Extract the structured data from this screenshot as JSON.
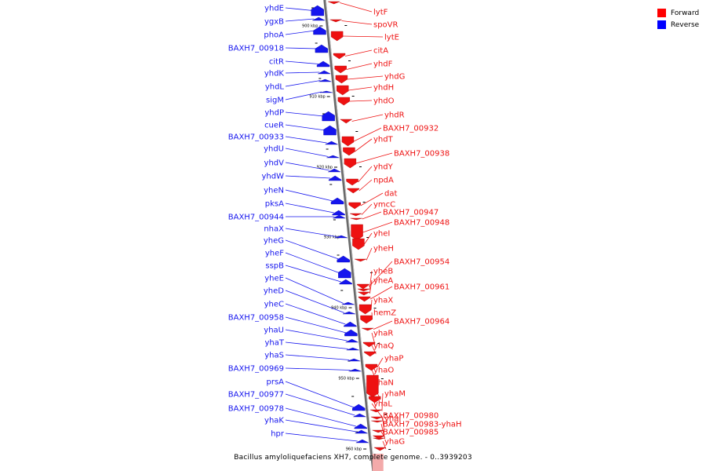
{
  "legend": {
    "forward_label": "Forward",
    "reverse_label": "Reverse",
    "forward_color": "#ff0000",
    "reverse_color": "#0000ff"
  },
  "caption": "Bacillus amyloliquefaciens XH7, complete genome. - 0..3939203",
  "colors": {
    "forward": "#ee1111",
    "reverse": "#1515ee",
    "axis": "#888888",
    "leader_forward": "#ee1111",
    "leader_reverse": "#1515ee"
  },
  "ticks": [
    {
      "label": "900 kbp"
    },
    {
      "label": "910 kbp"
    },
    {
      "label": "920 kbp"
    },
    {
      "label": "930 kbp"
    },
    {
      "label": "940 kbp"
    },
    {
      "label": "950 kbp"
    },
    {
      "label": "960 kbp"
    }
  ],
  "reverse_genes": [
    {
      "name": "yhdE"
    },
    {
      "name": "ygxB"
    },
    {
      "name": "phoA"
    },
    {
      "name": "BAXH7_00918"
    },
    {
      "name": "citR"
    },
    {
      "name": "yhdK"
    },
    {
      "name": "yhdL"
    },
    {
      "name": "sigM"
    },
    {
      "name": "yhdP"
    },
    {
      "name": "cueR"
    },
    {
      "name": "BAXH7_00933"
    },
    {
      "name": "yhdU"
    },
    {
      "name": "yhdV"
    },
    {
      "name": "yhdW"
    },
    {
      "name": "yheN"
    },
    {
      "name": "pksA"
    },
    {
      "name": "BAXH7_00944"
    },
    {
      "name": "nhaX"
    },
    {
      "name": "yheG"
    },
    {
      "name": "yheF"
    },
    {
      "name": "sspB"
    },
    {
      "name": "yheE"
    },
    {
      "name": "yheD"
    },
    {
      "name": "yheC"
    },
    {
      "name": "BAXH7_00958"
    },
    {
      "name": "yhaU"
    },
    {
      "name": "yhaT"
    },
    {
      "name": "yhaS"
    },
    {
      "name": "BAXH7_00969"
    },
    {
      "name": "prsA"
    },
    {
      "name": "BAXH7_00977"
    },
    {
      "name": "BAXH7_00978"
    },
    {
      "name": "yhaK"
    },
    {
      "name": "hpr"
    }
  ],
  "forward_genes": [
    {
      "name": "lytF"
    },
    {
      "name": "spoVR"
    },
    {
      "name": "lytE"
    },
    {
      "name": "citA"
    },
    {
      "name": "yhdF"
    },
    {
      "name": "yhdG"
    },
    {
      "name": "yhdH"
    },
    {
      "name": "yhdO"
    },
    {
      "name": "yhdR"
    },
    {
      "name": "BAXH7_00932"
    },
    {
      "name": "yhdT"
    },
    {
      "name": "BAXH7_00938"
    },
    {
      "name": "yhdY"
    },
    {
      "name": "npdA"
    },
    {
      "name": "dat"
    },
    {
      "name": "ymcC"
    },
    {
      "name": "BAXH7_00947"
    },
    {
      "name": "BAXH7_00948"
    },
    {
      "name": "yheI"
    },
    {
      "name": "yheH"
    },
    {
      "name": "BAXH7_00954"
    },
    {
      "name": "yheB"
    },
    {
      "name": "yheA"
    },
    {
      "name": "BAXH7_00961"
    },
    {
      "name": "yhaX"
    },
    {
      "name": "hemZ"
    },
    {
      "name": "BAXH7_00964"
    },
    {
      "name": "yhaR"
    },
    {
      "name": "yhaQ"
    },
    {
      "name": "yhaP"
    },
    {
      "name": "yhaO"
    },
    {
      "name": "yhaN"
    },
    {
      "name": "yhaM"
    },
    {
      "name": "yhaL"
    },
    {
      "name": "BAXH7_00980"
    },
    {
      "name": "yhaI"
    },
    {
      "name": "BAXH7_00983-yhaH"
    },
    {
      "name": "BAXH7_00985"
    },
    {
      "name": "yhaG"
    }
  ]
}
